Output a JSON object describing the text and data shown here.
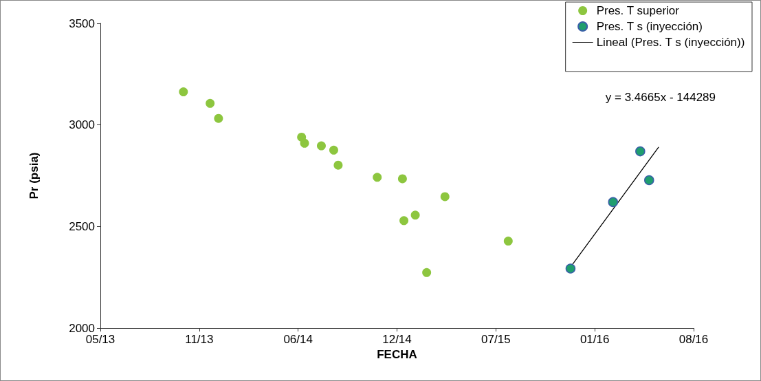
{
  "chart_data": {
    "type": "scatter",
    "xlabel": "FECHA",
    "ylabel": "Pr (psia)",
    "xlim": [
      "2013-05-01",
      "2016-08-13"
    ],
    "xticks": [
      {
        "value": "2013-05-01",
        "label": "05/13"
      },
      {
        "value": "2013-11-17",
        "label": "11/13"
      },
      {
        "value": "2014-06-05",
        "label": "06/14"
      },
      {
        "value": "2014-12-22",
        "label": "12/14"
      },
      {
        "value": "2015-07-10",
        "label": "07/15"
      },
      {
        "value": "2016-01-26",
        "label": "01/16"
      },
      {
        "value": "2016-08-13",
        "label": "08/16"
      }
    ],
    "ylim": [
      2000,
      3500
    ],
    "yticks": [
      2000,
      2500,
      3000,
      3500
    ],
    "grid": false,
    "legend": "top right",
    "marker": "circle",
    "annotations": [
      "y = 3.4665x - 144289"
    ],
    "series": [
      {
        "name": "Pres. T superior",
        "color": "#8dc63f",
        "x": [
          "2013-10-16",
          "2013-12-09",
          "2013-12-26",
          "2014-06-12",
          "2014-06-18",
          "2014-07-22",
          "2014-08-16",
          "2014-08-25",
          "2014-11-12",
          "2015-01-02",
          "2015-01-05",
          "2015-01-28",
          "2015-02-20",
          "2015-03-29",
          "2015-08-04"
        ],
        "values": [
          3163,
          3106,
          3032,
          2940,
          2910,
          2897,
          2876,
          2802,
          2742,
          2735,
          2529,
          2556,
          2273,
          2647,
          2428
        ]
      },
      {
        "name": "Pres. T s (inyección)",
        "color": "#1f9e6e",
        "x": [
          "2015-12-08",
          "2016-03-03",
          "2016-04-27",
          "2016-05-15"
        ],
        "values": [
          2293,
          2620,
          2870,
          2728
        ]
      },
      {
        "name": "Lineal (Pres. T s (inyección))",
        "type": "line",
        "color": "#000000",
        "marker": "none",
        "line_style": "solid",
        "x": [
          "2015-12-08",
          "2016-06-03"
        ],
        "values": [
          2300,
          2890
        ]
      }
    ]
  }
}
